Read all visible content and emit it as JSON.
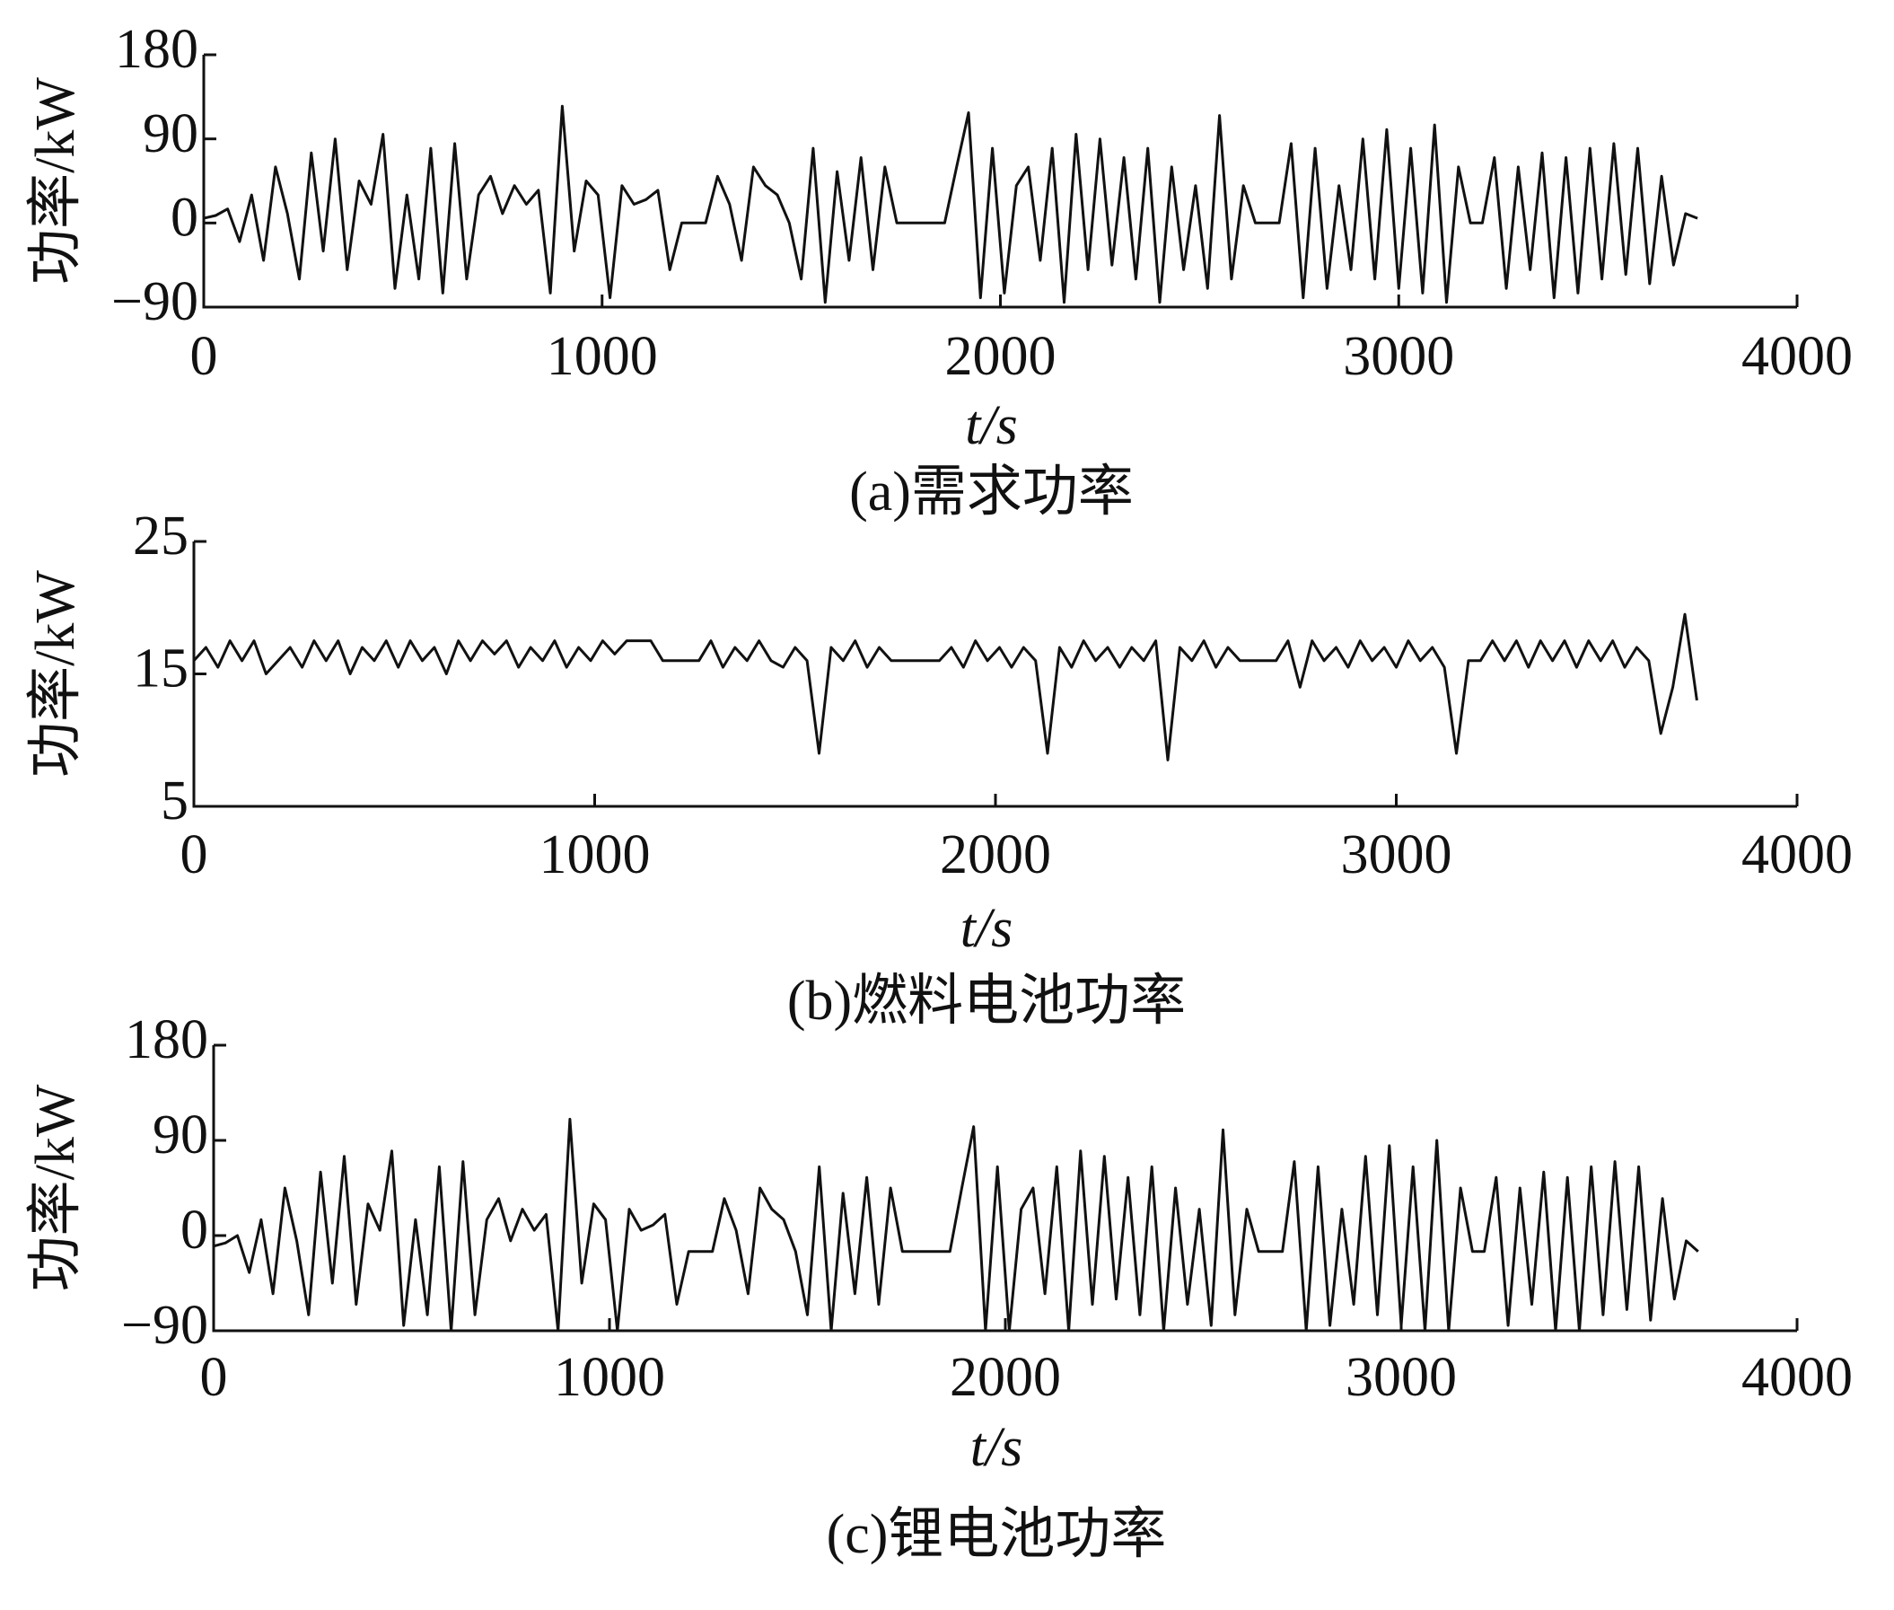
{
  "chart_data": [
    {
      "type": "line",
      "caption": "(a)需求功率",
      "ylabel": "功率/kW",
      "xlabel": "t/s",
      "xlim": [
        0,
        4000
      ],
      "xticks": [
        0,
        1000,
        2000,
        3000,
        4000
      ],
      "ylim": [
        -90,
        180
      ],
      "yticks": [
        {
          "value": -90,
          "label": "−90"
        },
        0,
        90,
        180
      ],
      "series": [
        {
          "color": "#111111",
          "x": [
            0,
            30,
            60,
            90,
            120,
            150,
            180,
            210,
            240,
            270,
            300,
            330,
            360,
            390,
            420,
            450,
            480,
            510,
            540,
            570,
            600,
            630,
            660,
            690,
            720,
            750,
            780,
            810,
            840,
            870,
            900,
            930,
            960,
            990,
            1020,
            1050,
            1080,
            1110,
            1140,
            1170,
            1200,
            1230,
            1260,
            1290,
            1320,
            1350,
            1380,
            1410,
            1440,
            1470,
            1500,
            1530,
            1560,
            1590,
            1620,
            1650,
            1680,
            1710,
            1740,
            1770,
            1800,
            1830,
            1860,
            1890,
            1920,
            1950,
            1980,
            2010,
            2040,
            2070,
            2100,
            2130,
            2160,
            2190,
            2220,
            2250,
            2280,
            2310,
            2340,
            2370,
            2400,
            2430,
            2460,
            2490,
            2520,
            2550,
            2580,
            2610,
            2640,
            2670,
            2700,
            2730,
            2760,
            2790,
            2820,
            2850,
            2880,
            2910,
            2940,
            2970,
            3000,
            3030,
            3060,
            3090,
            3120,
            3150,
            3180,
            3210,
            3240,
            3270,
            3300,
            3330,
            3360,
            3390,
            3420,
            3450,
            3480,
            3510,
            3540,
            3570,
            3600,
            3630,
            3660,
            3690,
            3720,
            3750
          ],
          "values": [
            5,
            8,
            15,
            -20,
            30,
            -40,
            60,
            10,
            -60,
            75,
            -30,
            90,
            -50,
            45,
            20,
            95,
            -70,
            30,
            -60,
            80,
            -75,
            85,
            -60,
            30,
            50,
            10,
            40,
            20,
            35,
            -75,
            125,
            -30,
            45,
            30,
            -80,
            40,
            20,
            25,
            35,
            -50,
            0,
            0,
            0,
            50,
            20,
            -40,
            60,
            40,
            30,
            0,
            -60,
            80,
            -85,
            55,
            -40,
            70,
            -50,
            60,
            0,
            0,
            0,
            0,
            0,
            60,
            118,
            -80,
            80,
            -75,
            40,
            60,
            -40,
            80,
            -85,
            95,
            -50,
            90,
            -45,
            70,
            -60,
            80,
            -85,
            60,
            -50,
            40,
            -70,
            115,
            -60,
            40,
            0,
            0,
            0,
            85,
            -80,
            80,
            -70,
            40,
            -50,
            90,
            -60,
            100,
            -70,
            80,
            -75,
            105,
            -85,
            60,
            0,
            0,
            70,
            -70,
            60,
            -50,
            75,
            -80,
            70,
            -75,
            80,
            -60,
            85,
            -55,
            80,
            -65,
            50,
            -45,
            10,
            5
          ]
        }
      ]
    },
    {
      "type": "line",
      "caption": "(b)燃料电池功率",
      "ylabel": "功率/kW",
      "xlabel": "t/s",
      "xlim": [
        0,
        4000
      ],
      "xticks": [
        0,
        1000,
        2000,
        3000,
        4000
      ],
      "ylim": [
        5,
        25
      ],
      "yticks": [
        5,
        15,
        25
      ],
      "series": [
        {
          "color": "#111111",
          "x": [
            0,
            30,
            60,
            90,
            120,
            150,
            180,
            210,
            240,
            270,
            300,
            330,
            360,
            390,
            420,
            450,
            480,
            510,
            540,
            570,
            600,
            630,
            660,
            690,
            720,
            750,
            780,
            810,
            840,
            870,
            900,
            930,
            960,
            990,
            1020,
            1050,
            1080,
            1110,
            1140,
            1170,
            1200,
            1230,
            1260,
            1290,
            1320,
            1350,
            1380,
            1410,
            1440,
            1470,
            1500,
            1530,
            1560,
            1590,
            1620,
            1650,
            1680,
            1710,
            1740,
            1770,
            1800,
            1830,
            1860,
            1890,
            1920,
            1950,
            1980,
            2010,
            2040,
            2070,
            2100,
            2130,
            2160,
            2190,
            2220,
            2250,
            2280,
            2310,
            2340,
            2370,
            2400,
            2430,
            2460,
            2490,
            2520,
            2550,
            2580,
            2610,
            2640,
            2670,
            2700,
            2730,
            2760,
            2790,
            2820,
            2850,
            2880,
            2910,
            2940,
            2970,
            3000,
            3030,
            3060,
            3090,
            3120,
            3150,
            3180,
            3210,
            3240,
            3270,
            3300,
            3330,
            3360,
            3390,
            3420,
            3450,
            3480,
            3510,
            3540,
            3570,
            3600,
            3630,
            3660,
            3690,
            3720,
            3750
          ],
          "values": [
            16,
            17,
            15.5,
            17.5,
            16,
            17.5,
            15,
            16,
            17,
            15.5,
            17.5,
            16,
            17.5,
            15,
            17,
            16,
            17.5,
            15.5,
            17.5,
            16,
            17,
            15,
            17.5,
            16,
            17.5,
            16.5,
            17.5,
            15.5,
            17,
            16,
            17.5,
            15.5,
            17,
            16,
            17.5,
            16.5,
            17.5,
            17.5,
            17.5,
            16,
            16,
            16,
            16,
            17.5,
            15.5,
            17,
            16,
            17.5,
            16,
            15.5,
            17,
            16,
            9,
            17,
            16,
            17.5,
            15.5,
            17,
            16,
            16,
            16,
            16,
            16,
            17,
            15.5,
            17.5,
            16,
            17,
            15.5,
            17,
            16,
            9,
            17,
            15.5,
            17.5,
            16,
            17,
            15.5,
            17,
            16,
            17.5,
            8.5,
            17,
            16,
            17.5,
            15.5,
            17,
            16,
            16,
            16,
            16,
            17.5,
            14,
            17.5,
            16,
            17,
            15.5,
            17.5,
            16,
            17,
            15.5,
            17.5,
            16,
            17,
            15.5,
            9,
            16,
            16,
            17.5,
            16,
            17.5,
            15.5,
            17.5,
            16,
            17.5,
            15.5,
            17.5,
            16,
            17.5,
            15.5,
            17,
            16,
            10.5,
            14,
            19.5,
            13
          ]
        }
      ]
    },
    {
      "type": "line",
      "caption": "(c)锂电池功率",
      "ylabel": "功率/kW",
      "xlabel": "t/s",
      "xlim": [
        0,
        4000
      ],
      "xticks": [
        0,
        1000,
        2000,
        3000,
        4000
      ],
      "ylim": [
        -90,
        180
      ],
      "yticks": [
        {
          "value": -90,
          "label": "−90"
        },
        0,
        90,
        180
      ],
      "series": [
        {
          "color": "#111111",
          "x": [
            0,
            30,
            60,
            90,
            120,
            150,
            180,
            210,
            240,
            270,
            300,
            330,
            360,
            390,
            420,
            450,
            480,
            510,
            540,
            570,
            600,
            630,
            660,
            690,
            720,
            750,
            780,
            810,
            840,
            870,
            900,
            930,
            960,
            990,
            1020,
            1050,
            1080,
            1110,
            1140,
            1170,
            1200,
            1230,
            1260,
            1290,
            1320,
            1350,
            1380,
            1410,
            1440,
            1470,
            1500,
            1530,
            1560,
            1590,
            1620,
            1650,
            1680,
            1710,
            1740,
            1770,
            1800,
            1830,
            1860,
            1890,
            1920,
            1950,
            1980,
            2010,
            2040,
            2070,
            2100,
            2130,
            2160,
            2190,
            2220,
            2250,
            2280,
            2310,
            2340,
            2370,
            2400,
            2430,
            2460,
            2490,
            2520,
            2550,
            2580,
            2610,
            2640,
            2670,
            2700,
            2730,
            2760,
            2790,
            2820,
            2850,
            2880,
            2910,
            2940,
            2970,
            3000,
            3030,
            3060,
            3090,
            3120,
            3150,
            3180,
            3210,
            3240,
            3270,
            3300,
            3330,
            3360,
            3390,
            3420,
            3450,
            3480,
            3510,
            3540,
            3570,
            3600,
            3630,
            3660,
            3690,
            3720,
            3750
          ],
          "values": [
            -10,
            -7,
            0,
            -35,
            15,
            -55,
            45,
            -5,
            -75,
            60,
            -45,
            75,
            -65,
            30,
            5,
            80,
            -85,
            15,
            -75,
            65,
            -90,
            70,
            -75,
            15,
            35,
            -5,
            25,
            5,
            20,
            -90,
            110,
            -45,
            30,
            15,
            -90,
            25,
            5,
            10,
            20,
            -65,
            -15,
            -15,
            -15,
            35,
            5,
            -55,
            45,
            25,
            15,
            -15,
            -75,
            65,
            -90,
            40,
            -55,
            55,
            -65,
            45,
            -15,
            -15,
            -15,
            -15,
            -15,
            45,
            103,
            -90,
            65,
            -90,
            25,
            45,
            -55,
            65,
            -90,
            80,
            -65,
            75,
            -60,
            55,
            -75,
            65,
            -90,
            45,
            -65,
            25,
            -85,
            100,
            -75,
            25,
            -15,
            -15,
            -15,
            70,
            -90,
            65,
            -85,
            25,
            -65,
            75,
            -75,
            85,
            -85,
            65,
            -90,
            90,
            -90,
            45,
            -15,
            -15,
            55,
            -85,
            45,
            -65,
            60,
            -90,
            55,
            -90,
            65,
            -75,
            70,
            -70,
            65,
            -80,
            35,
            -60,
            -5,
            -15
          ]
        }
      ]
    }
  ]
}
